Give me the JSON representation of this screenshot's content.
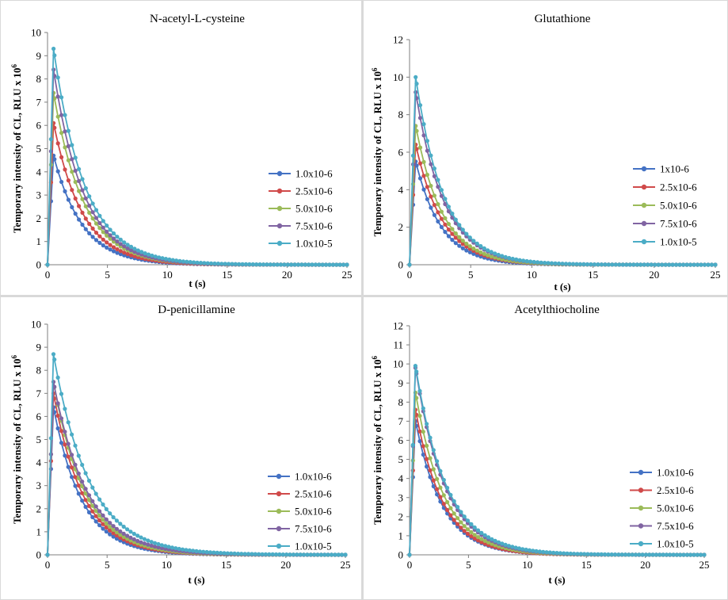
{
  "colors": [
    "#4472c4",
    "#d04a4a",
    "#9bbb59",
    "#8064a2",
    "#4bacc6"
  ],
  "chart_data": [
    {
      "type": "line",
      "title": "N-acetyl-L-cysteine",
      "xlabel": "t (s)",
      "ylabel": "Temporary intensity of CL, RLU x 10",
      "ylabel_sup": "6",
      "xlim": [
        0,
        25
      ],
      "ylim": [
        0,
        10
      ],
      "xticks": [
        0,
        5,
        10,
        15,
        20,
        25
      ],
      "yticks": [
        0,
        1,
        2,
        3,
        4,
        5,
        6,
        7,
        8,
        9,
        10
      ],
      "legend_position": "right",
      "series": [
        {
          "name": "1.0x10-6",
          "peak": 4.7,
          "tau": 2.4
        },
        {
          "name": "2.5x10-6",
          "peak": 6.1,
          "tau": 2.4
        },
        {
          "name": "5.0x10-6",
          "peak": 7.4,
          "tau": 2.5
        },
        {
          "name": "7.5x10-6",
          "peak": 8.4,
          "tau": 2.5
        },
        {
          "name": "1.0x10-5",
          "peak": 9.3,
          "tau": 2.6
        }
      ]
    },
    {
      "type": "line",
      "title": "Glutathione",
      "xlabel": "t (s)",
      "ylabel": "Temporary intensity of CL, RLU x 10",
      "ylabel_sup": "6",
      "xlim": [
        0,
        25
      ],
      "ylim": [
        0,
        12
      ],
      "xticks": [
        0,
        5,
        10,
        15,
        20,
        25
      ],
      "yticks": [
        0,
        2,
        4,
        6,
        8,
        10,
        12
      ],
      "legend_position": "right",
      "series": [
        {
          "name": "1x10-6",
          "peak": 5.5,
          "tau": 2.1
        },
        {
          "name": "2.5x10-6",
          "peak": 6.4,
          "tau": 2.2
        },
        {
          "name": "5.0x10-6",
          "peak": 7.4,
          "tau": 2.2
        },
        {
          "name": "7.5x10-6",
          "peak": 9.2,
          "tau": 2.3
        },
        {
          "name": "1.0x10-5",
          "peak": 10.0,
          "tau": 2.3
        }
      ]
    },
    {
      "type": "line",
      "title": "D-penicillamine",
      "xlabel": "t (s)",
      "ylabel": "Temporary intensity of CL, RLU x 10",
      "ylabel_sup": "6",
      "xlim": [
        0,
        25
      ],
      "ylim": [
        0,
        10
      ],
      "xticks": [
        0,
        5,
        10,
        15,
        20,
        25
      ],
      "yticks": [
        0,
        1,
        2,
        3,
        4,
        5,
        6,
        7,
        8,
        9,
        10
      ],
      "legend_position": "right",
      "series": [
        {
          "name": "1.0x10-6",
          "peak": 6.4,
          "tau": 2.4
        },
        {
          "name": "2.5x10-6",
          "peak": 7.0,
          "tau": 2.5
        },
        {
          "name": "5.0x10-6",
          "peak": 7.5,
          "tau": 2.6
        },
        {
          "name": "7.5x10-6",
          "peak": 7.5,
          "tau": 2.8
        },
        {
          "name": "1.0x10-5",
          "peak": 8.7,
          "tau": 3.0
        }
      ]
    },
    {
      "type": "line",
      "title": "Acetylthiocholine",
      "xlabel": "t (s)",
      "ylabel": "Temporary intensity of CL, RLU x 10",
      "ylabel_sup": "6",
      "xlim": [
        0,
        25
      ],
      "ylim": [
        0,
        12
      ],
      "xticks": [
        0,
        5,
        10,
        15,
        20,
        25
      ],
      "yticks": [
        0,
        1,
        2,
        3,
        4,
        5,
        6,
        7,
        8,
        9,
        10,
        11,
        12
      ],
      "legend_position": "right",
      "series": [
        {
          "name": "1.0x10-6",
          "peak": 7.0,
          "tau": 2.3
        },
        {
          "name": "2.5x10-6",
          "peak": 7.6,
          "tau": 2.3
        },
        {
          "name": "5.0x10-6",
          "peak": 8.5,
          "tau": 2.4
        },
        {
          "name": "7.5x10-6",
          "peak": 9.8,
          "tau": 2.5
        },
        {
          "name": "1.0x10-5",
          "peak": 9.9,
          "tau": 2.6
        }
      ]
    }
  ]
}
